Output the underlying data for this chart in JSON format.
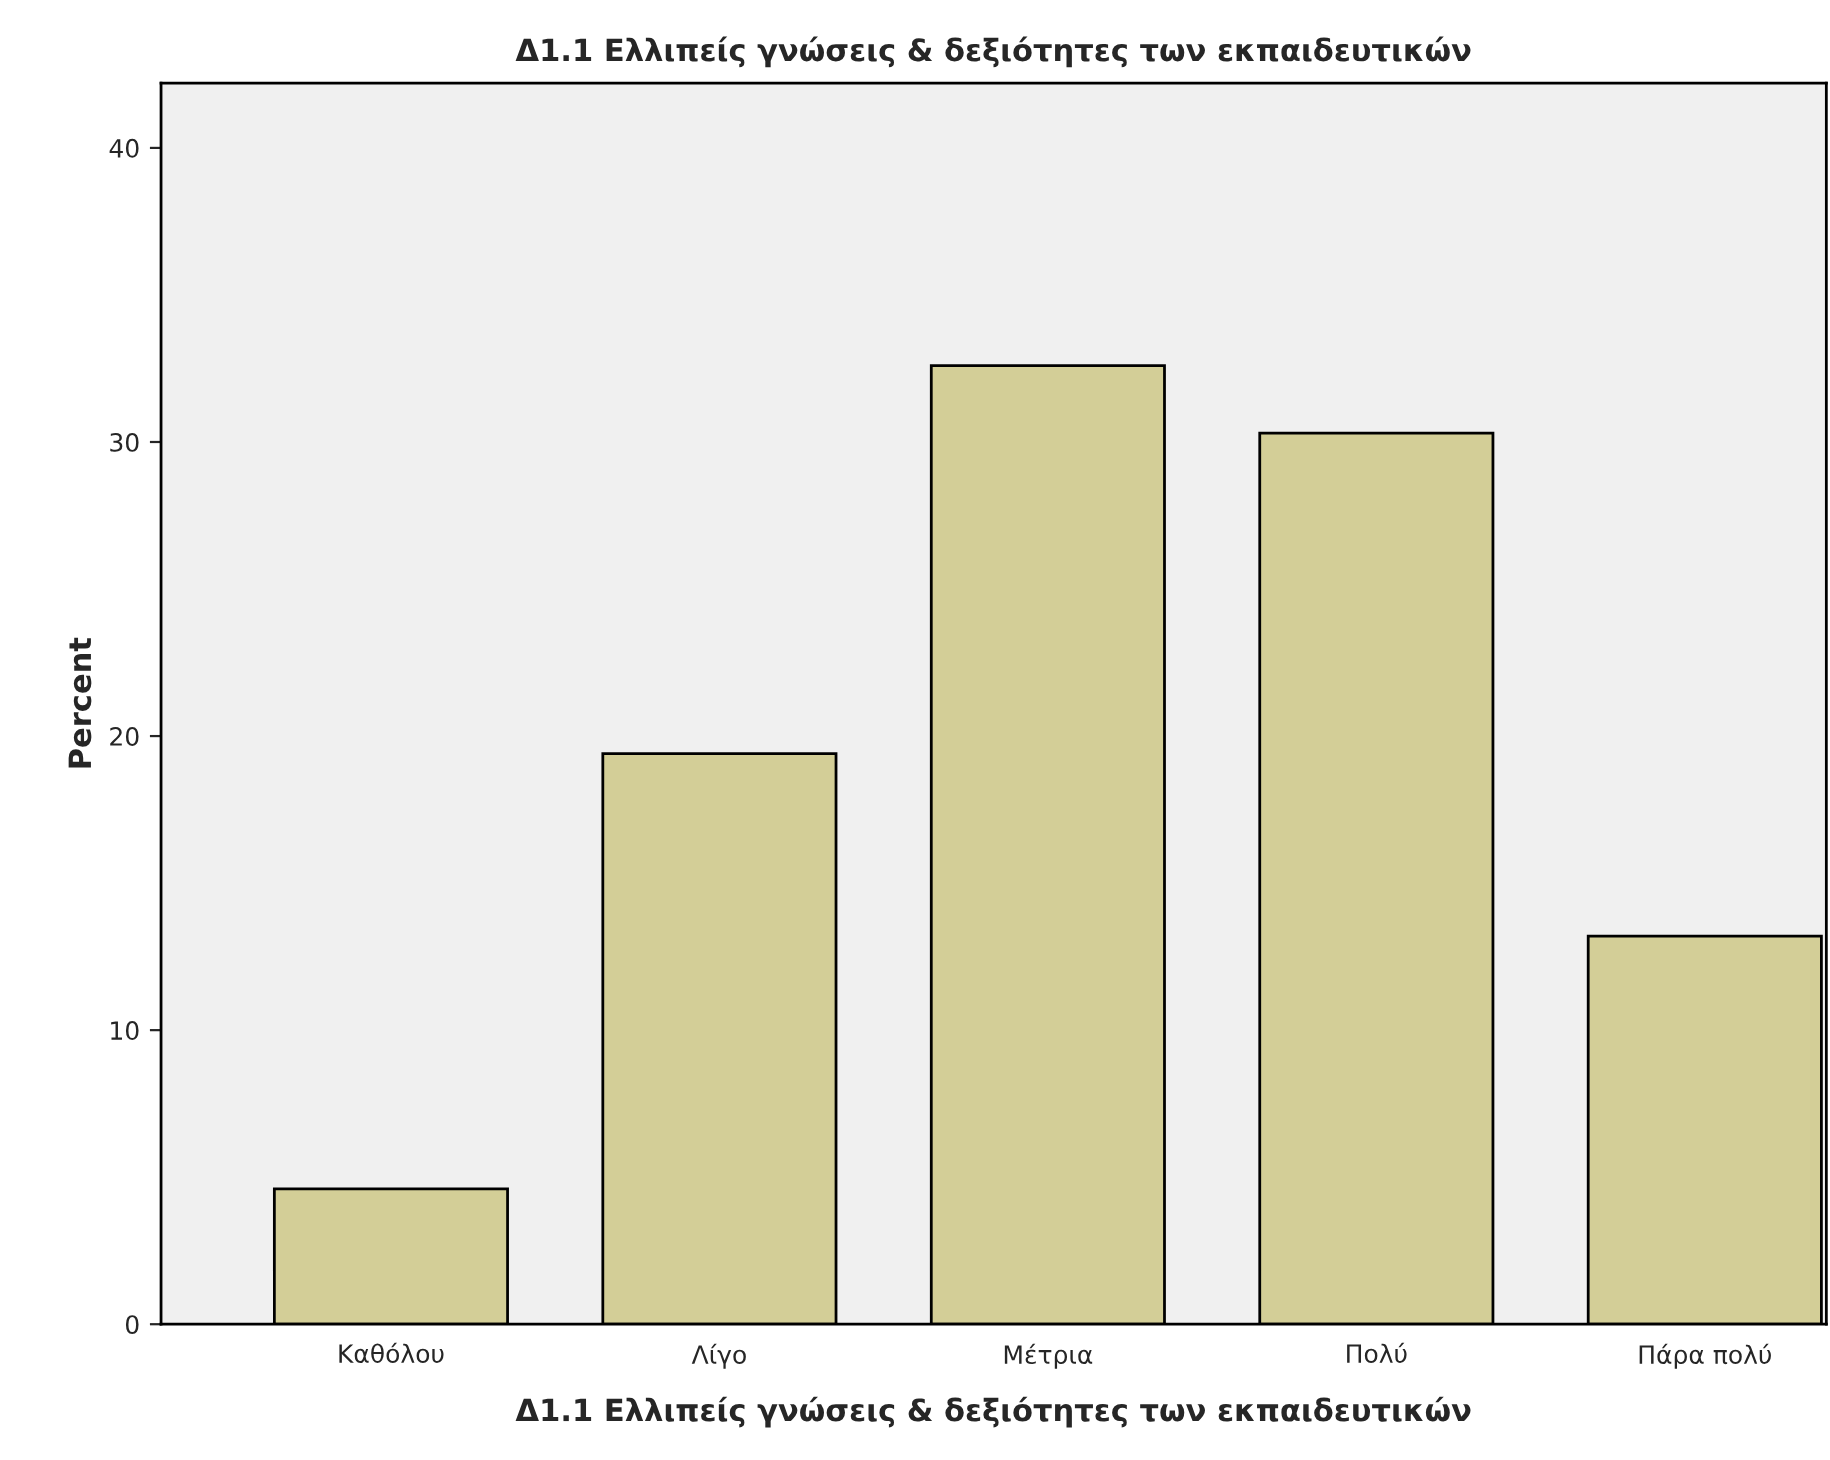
{
  "chart_data": {
    "type": "bar",
    "title": "Δ1.1 Ελλιπείς γνώσεις & δεξιότητες των εκπαιδευτικών",
    "xlabel": "Δ1.1 Ελλιπείς γνώσεις & δεξιότητες των εκπαιδευτικών",
    "ylabel": "Percent",
    "categories": [
      "Καθόλου",
      "Λίγο",
      "Μέτρια",
      "Πολύ",
      "Πάρα πολύ"
    ],
    "values": [
      4.6,
      19.4,
      32.6,
      30.3,
      13.2
    ],
    "color": "#d3ce97",
    "ylim": [
      0,
      42.2
    ],
    "yticks": [
      0,
      10,
      20,
      30,
      40
    ],
    "grid": false
  }
}
